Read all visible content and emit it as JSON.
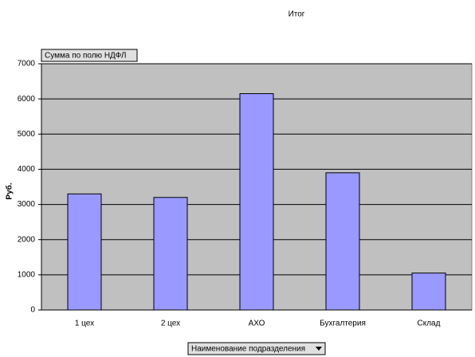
{
  "chart_data": {
    "type": "bar",
    "title": "Итог",
    "y_label": "Руб.",
    "field_button": "Сумма по полю НДФЛ",
    "category_button": "Наименование подразделения",
    "categories": [
      "1 цех",
      "2 цех",
      "АХО",
      "Бухгалтерия",
      "Склад"
    ],
    "values": [
      3300,
      3200,
      6150,
      3900,
      1050
    ],
    "color": "#9999ff",
    "ylim": [
      0,
      7000
    ],
    "yticks": [
      0,
      1000,
      2000,
      3000,
      4000,
      5000,
      6000,
      7000
    ],
    "grid": true
  }
}
